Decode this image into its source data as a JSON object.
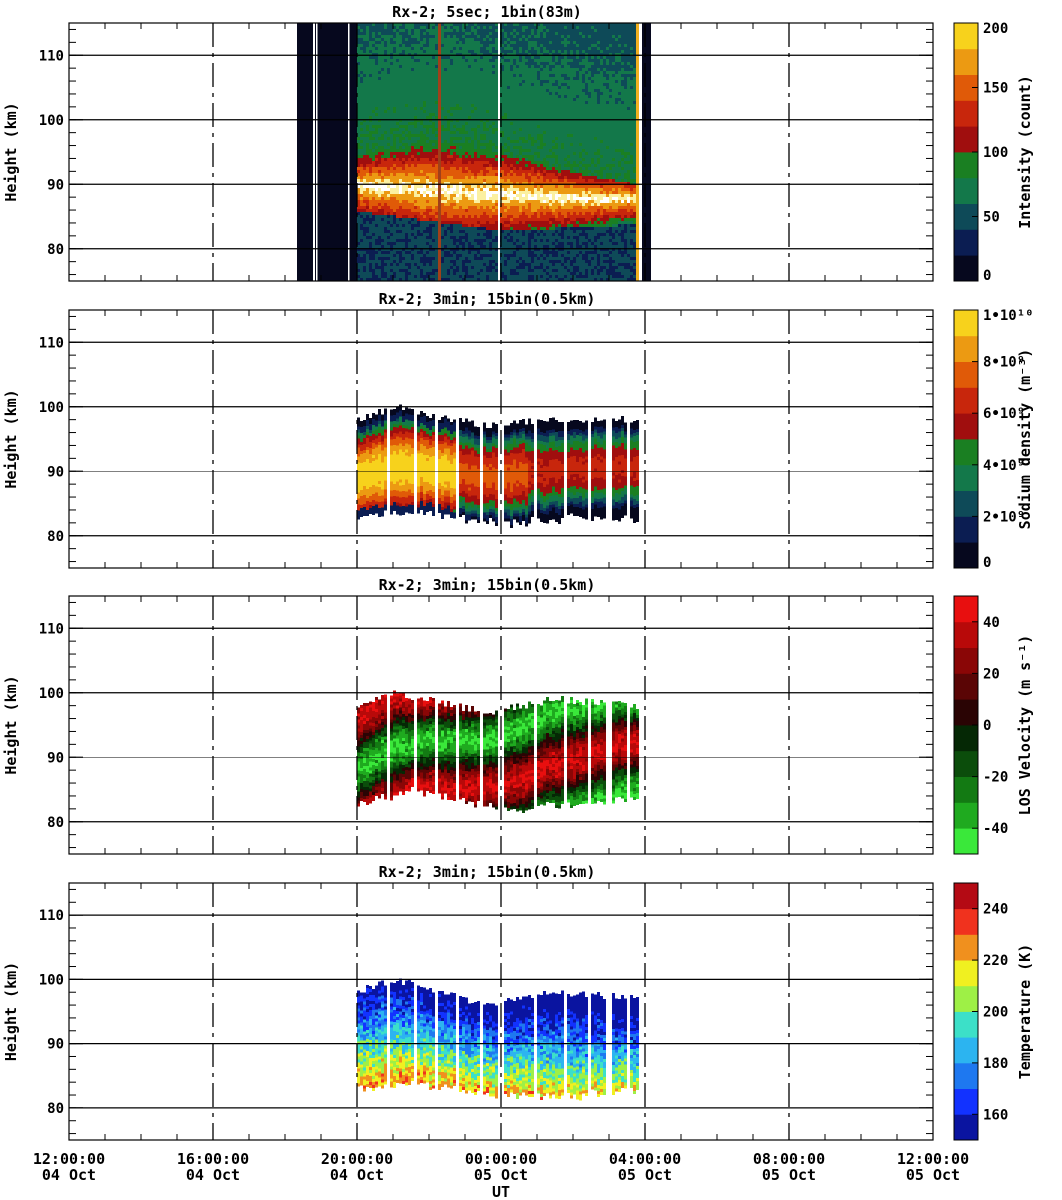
{
  "x_axis": {
    "label": "UT",
    "ticks": [
      {
        "time": "12:00:00",
        "date": "04 Oct"
      },
      {
        "time": "16:00:00",
        "date": "04 Oct"
      },
      {
        "time": "20:00:00",
        "date": "04 Oct"
      },
      {
        "time": "00:00:00",
        "date": "05 Oct"
      },
      {
        "time": "04:00:00",
        "date": "05 Oct"
      },
      {
        "time": "08:00:00",
        "date": "05 Oct"
      },
      {
        "time": "12:00:00",
        "date": "05 Oct"
      }
    ]
  },
  "y_axis": {
    "label": "Height (km)",
    "ticks": [
      "80",
      "90",
      "100",
      "110"
    ]
  },
  "colors": {
    "intensity": [
      "#06081e",
      "#0b1d52",
      "#0e4a58",
      "#13784a",
      "#1a7f22",
      "#a00e0e",
      "#c8260c",
      "#e05a08",
      "#ec9a12",
      "#f7d21c"
    ],
    "density": [
      "#06081e",
      "#0b1d52",
      "#0e4a58",
      "#13784a",
      "#1a7f22",
      "#a00e0e",
      "#c8260c",
      "#e05a08",
      "#ec9a12",
      "#f7d21c"
    ],
    "velocity": [
      "#3ae83a",
      "#1faa1f",
      "#137a13",
      "#0b4d0b",
      "#052805",
      "#2a0404",
      "#5a0505",
      "#8a0606",
      "#b80909",
      "#e80f0f"
    ],
    "temperature": [
      "#0a14a0",
      "#1232ff",
      "#1e78f0",
      "#2cb4f0",
      "#3ce0c8",
      "#9ef046",
      "#f0f020",
      "#f0901e",
      "#f0321e",
      "#b40a14"
    ]
  },
  "chart_data": [
    {
      "type": "heatmap",
      "panel": "intensity",
      "title": "Rx-2;  5sec; 1bin(83m)",
      "xlim": [
        "2023-10-04T12:00",
        "2023-10-05T12:00"
      ],
      "ylim": [
        75,
        115
      ],
      "data_time_range": [
        "18:20",
        "04:00"
      ],
      "colorbar": {
        "label": "Intensity (count)",
        "range": [
          0,
          200
        ],
        "ticks": [
          "0",
          "50",
          "100",
          "150",
          "200"
        ]
      },
      "layer_peak": [
        {
          "time": "20:00",
          "height_km": 90
        },
        {
          "time": "23:00",
          "height_km": 89
        },
        {
          "time": "02:00",
          "height_km": 88
        },
        {
          "time": "03:45",
          "height_km": 88
        }
      ],
      "layer_top": [
        {
          "time": "20:00",
          "height_km": 95
        },
        {
          "time": "22:00",
          "height_km": 98
        },
        {
          "time": "02:00",
          "height_km": 92
        },
        {
          "time": "03:50",
          "height_km": 90
        }
      ],
      "layer_bottom": [
        {
          "time": "20:00",
          "height_km": 86
        },
        {
          "time": "00:00",
          "height_km": 83
        },
        {
          "time": "03:50",
          "height_km": 84
        }
      ]
    },
    {
      "type": "heatmap",
      "panel": "sodium density",
      "title": "Rx-2; 3min; 15bin(0.5km)",
      "xlim": [
        "2023-10-04T12:00",
        "2023-10-05T12:00"
      ],
      "ylim": [
        75,
        115
      ],
      "data_time_range": [
        "20:00",
        "03:50"
      ],
      "colorbar": {
        "label": "Sodium density (m⁻³)",
        "range": [
          0,
          10000000000
        ],
        "ticks": [
          "0",
          "2•10⁹",
          "4•10⁹",
          "6•10⁹",
          "8•10⁹",
          "1•10¹⁰"
        ]
      },
      "coverage_top": [
        {
          "time": "20:00",
          "height_km": 98
        },
        {
          "time": "21:00",
          "height_km": 100
        },
        {
          "time": "23:30",
          "height_km": 97
        },
        {
          "time": "01:30",
          "height_km": 98
        },
        {
          "time": "03:50",
          "height_km": 98
        }
      ],
      "coverage_bottom": [
        {
          "time": "20:00",
          "height_km": 83
        },
        {
          "time": "21:30",
          "height_km": 84
        },
        {
          "time": "00:00",
          "height_km": 82
        },
        {
          "time": "02:00",
          "height_km": 83
        },
        {
          "time": "03:50",
          "height_km": 83
        }
      ]
    },
    {
      "type": "heatmap",
      "panel": "LOS velocity",
      "title": "Rx-2; 3min; 15bin(0.5km)",
      "xlim": [
        "2023-10-04T12:00",
        "2023-10-05T12:00"
      ],
      "ylim": [
        75,
        115
      ],
      "data_time_range": [
        "20:00",
        "03:50"
      ],
      "colorbar": {
        "label": "LOS Velocity (m s⁻¹)",
        "range": [
          -50,
          50
        ],
        "ticks": [
          "-40",
          "-20",
          "0",
          "20",
          "40"
        ]
      },
      "coverage_top": [
        {
          "time": "20:00",
          "height_km": 98
        },
        {
          "time": "21:00",
          "height_km": 100
        },
        {
          "time": "23:30",
          "height_km": 97
        },
        {
          "time": "01:30",
          "height_km": 99
        },
        {
          "time": "03:50",
          "height_km": 98
        }
      ],
      "coverage_bottom": [
        {
          "time": "20:00",
          "height_km": 83
        },
        {
          "time": "21:30",
          "height_km": 85
        },
        {
          "time": "00:00",
          "height_km": 82
        },
        {
          "time": "02:00",
          "height_km": 83
        },
        {
          "time": "03:50",
          "height_km": 84
        }
      ]
    },
    {
      "type": "heatmap",
      "panel": "temperature",
      "title": "Rx-2; 3min; 15bin(0.5km)",
      "xlim": [
        "2023-10-04T12:00",
        "2023-10-05T12:00"
      ],
      "ylim": [
        75,
        115
      ],
      "data_time_range": [
        "20:00",
        "03:50"
      ],
      "colorbar": {
        "label": "Temperature (K)",
        "range": [
          150,
          250
        ],
        "ticks": [
          "160",
          "180",
          "200",
          "220",
          "240"
        ]
      },
      "coverage_top": [
        {
          "time": "20:00",
          "height_km": 98
        },
        {
          "time": "21:00",
          "height_km": 100
        },
        {
          "time": "23:30",
          "height_km": 96
        },
        {
          "time": "01:30",
          "height_km": 98
        },
        {
          "time": "03:50",
          "height_km": 97
        }
      ],
      "coverage_bottom": [
        {
          "time": "20:00",
          "height_km": 83
        },
        {
          "time": "21:30",
          "height_km": 84
        },
        {
          "time": "00:00",
          "height_km": 82
        },
        {
          "time": "02:00",
          "height_km": 82
        },
        {
          "time": "03:50",
          "height_km": 83
        }
      ]
    }
  ]
}
